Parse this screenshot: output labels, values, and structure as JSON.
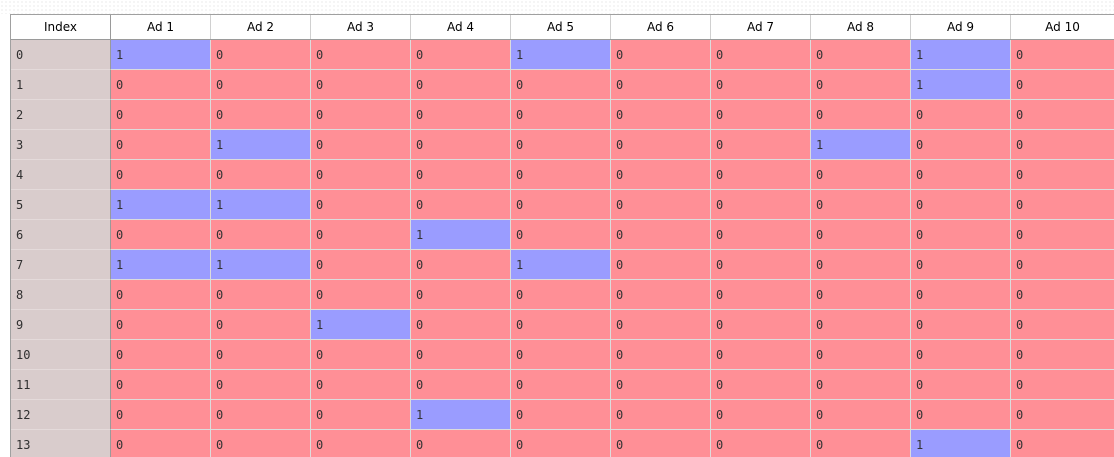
{
  "table": {
    "index_header": "Index",
    "columns": [
      "Ad 1",
      "Ad 2",
      "Ad 3",
      "Ad 4",
      "Ad 5",
      "Ad 6",
      "Ad 7",
      "Ad 8",
      "Ad 9",
      "Ad 10"
    ],
    "rows": [
      {
        "index": "0",
        "values": [
          "1",
          "0",
          "0",
          "0",
          "1",
          "0",
          "0",
          "0",
          "1",
          "0"
        ]
      },
      {
        "index": "1",
        "values": [
          "0",
          "0",
          "0",
          "0",
          "0",
          "0",
          "0",
          "0",
          "1",
          "0"
        ]
      },
      {
        "index": "2",
        "values": [
          "0",
          "0",
          "0",
          "0",
          "0",
          "0",
          "0",
          "0",
          "0",
          "0"
        ]
      },
      {
        "index": "3",
        "values": [
          "0",
          "1",
          "0",
          "0",
          "0",
          "0",
          "0",
          "1",
          "0",
          "0"
        ]
      },
      {
        "index": "4",
        "values": [
          "0",
          "0",
          "0",
          "0",
          "0",
          "0",
          "0",
          "0",
          "0",
          "0"
        ]
      },
      {
        "index": "5",
        "values": [
          "1",
          "1",
          "0",
          "0",
          "0",
          "0",
          "0",
          "0",
          "0",
          "0"
        ]
      },
      {
        "index": "6",
        "values": [
          "0",
          "0",
          "0",
          "1",
          "0",
          "0",
          "0",
          "0",
          "0",
          "0"
        ]
      },
      {
        "index": "7",
        "values": [
          "1",
          "1",
          "0",
          "0",
          "1",
          "0",
          "0",
          "0",
          "0",
          "0"
        ]
      },
      {
        "index": "8",
        "values": [
          "0",
          "0",
          "0",
          "0",
          "0",
          "0",
          "0",
          "0",
          "0",
          "0"
        ]
      },
      {
        "index": "9",
        "values": [
          "0",
          "0",
          "1",
          "0",
          "0",
          "0",
          "0",
          "0",
          "0",
          "0"
        ]
      },
      {
        "index": "10",
        "values": [
          "0",
          "0",
          "0",
          "0",
          "0",
          "0",
          "0",
          "0",
          "0",
          "0"
        ]
      },
      {
        "index": "11",
        "values": [
          "0",
          "0",
          "0",
          "0",
          "0",
          "0",
          "0",
          "0",
          "0",
          "0"
        ]
      },
      {
        "index": "12",
        "values": [
          "0",
          "0",
          "0",
          "1",
          "0",
          "0",
          "0",
          "0",
          "0",
          "0"
        ]
      },
      {
        "index": "13",
        "values": [
          "0",
          "0",
          "0",
          "0",
          "0",
          "0",
          "0",
          "0",
          "1",
          "0"
        ]
      }
    ]
  },
  "colors": {
    "value_0_background": "#ff8f96",
    "value_1_background": "#9a9cff",
    "index_background": "#d9cccc"
  }
}
